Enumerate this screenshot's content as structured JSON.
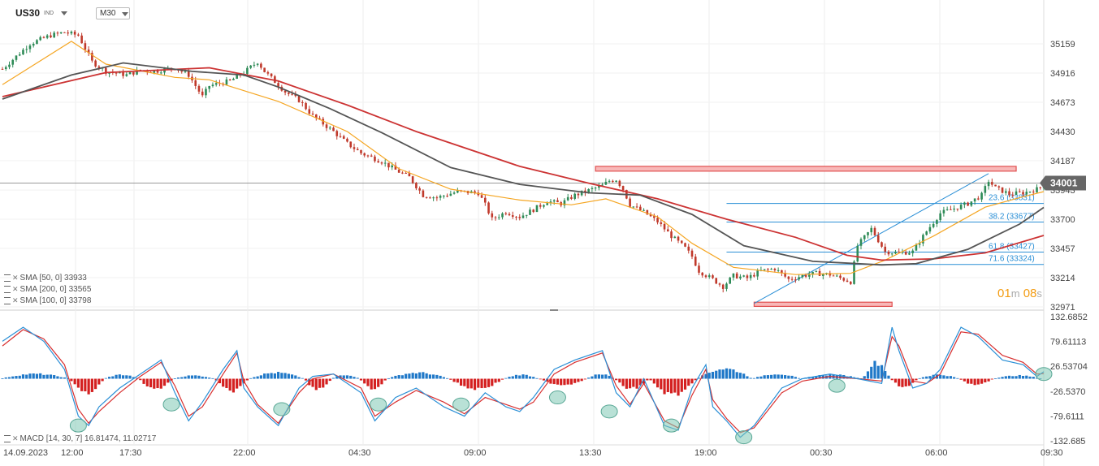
{
  "header": {
    "symbol": "US30",
    "symbol_tag": "IND",
    "timeframe": "M30"
  },
  "legend": [
    {
      "label": "SMA [50, 0] 33933"
    },
    {
      "label": "SMA [200, 0] 33565"
    },
    {
      "label": "SMA [100, 0] 33798"
    }
  ],
  "macd_label": "MACD [14, 30, 7] 16.81474, 11.02717",
  "candle_timer": {
    "minutes": "01",
    "minutes_unit": "m",
    "seconds": "08",
    "seconds_unit": "s"
  },
  "chart_data": [
    {
      "type": "candlestick",
      "ylim": [
        32971,
        35280
      ],
      "y_ticks": [
        "35159",
        "34916",
        "34673",
        "34430",
        "34187",
        "33943",
        "33700",
        "33457",
        "33214",
        "32971"
      ],
      "x_ticks": [
        "14.09.2023",
        "12:00",
        "17:30",
        "22:00",
        "04:30",
        "09:00",
        "13:30",
        "19:00",
        "00:30",
        "06:00",
        "09:30"
      ],
      "current_price": {
        "value": 34001,
        "label": "34001"
      },
      "close_path": [
        [
          0,
          34950
        ],
        [
          8,
          35160
        ],
        [
          14,
          35230
        ],
        [
          18,
          35255
        ],
        [
          22,
          35230
        ],
        [
          26,
          35010
        ],
        [
          30,
          34930
        ],
        [
          36,
          34900
        ],
        [
          40,
          34940
        ],
        [
          44,
          34930
        ],
        [
          50,
          34960
        ],
        [
          54,
          34900
        ],
        [
          58,
          34720
        ],
        [
          60,
          34810
        ],
        [
          66,
          34850
        ],
        [
          70,
          34920
        ],
        [
          74,
          35010
        ],
        [
          76,
          34930
        ],
        [
          82,
          34760
        ],
        [
          86,
          34690
        ],
        [
          90,
          34560
        ],
        [
          96,
          34430
        ],
        [
          100,
          34330
        ],
        [
          104,
          34250
        ],
        [
          110,
          34180
        ],
        [
          114,
          34110
        ],
        [
          118,
          34050
        ],
        [
          122,
          33900
        ],
        [
          126,
          33880
        ],
        [
          132,
          33930
        ],
        [
          138,
          33920
        ],
        [
          140,
          33820
        ],
        [
          142,
          33700
        ],
        [
          146,
          33760
        ],
        [
          150,
          33720
        ],
        [
          154,
          33780
        ],
        [
          158,
          33850
        ],
        [
          162,
          33830
        ],
        [
          166,
          33900
        ],
        [
          170,
          33940
        ],
        [
          174,
          33980
        ],
        [
          176,
          34020
        ],
        [
          178,
          34030
        ],
        [
          180,
          33950
        ],
        [
          182,
          33820
        ],
        [
          186,
          33760
        ],
        [
          190,
          33680
        ],
        [
          194,
          33560
        ],
        [
          198,
          33460
        ],
        [
          200,
          33390
        ],
        [
          202,
          33270
        ],
        [
          206,
          33200
        ],
        [
          209,
          33140
        ],
        [
          212,
          33230
        ],
        [
          216,
          33210
        ],
        [
          220,
          33270
        ],
        [
          224,
          33290
        ],
        [
          228,
          33200
        ],
        [
          232,
          33230
        ],
        [
          236,
          33250
        ],
        [
          240,
          33240
        ],
        [
          244,
          33200
        ],
        [
          246,
          33180
        ],
        [
          248,
          33480
        ],
        [
          252,
          33620
        ],
        [
          256,
          33430
        ],
        [
          260,
          33420
        ],
        [
          264,
          33430
        ],
        [
          268,
          33600
        ],
        [
          272,
          33750
        ],
        [
          276,
          33790
        ],
        [
          280,
          33830
        ],
        [
          284,
          33900
        ],
        [
          286,
          34020
        ],
        [
          288,
          33960
        ],
        [
          292,
          33910
        ],
        [
          296,
          33920
        ],
        [
          300,
          33950
        ],
        [
          302,
          33980
        ]
      ],
      "series": [
        {
          "name": "SMA [50, 0]",
          "value": 33933,
          "color": "#f5a623",
          "points": [
            [
              0,
              34820
            ],
            [
              20,
              35180
            ],
            [
              30,
              34990
            ],
            [
              50,
              34880
            ],
            [
              60,
              34860
            ],
            [
              80,
              34680
            ],
            [
              100,
              34430
            ],
            [
              115,
              34120
            ],
            [
              130,
              33950
            ],
            [
              150,
              33860
            ],
            [
              165,
              33820
            ],
            [
              175,
              33870
            ],
            [
              190,
              33720
            ],
            [
              200,
              33500
            ],
            [
              212,
              33300
            ],
            [
              230,
              33240
            ],
            [
              246,
              33250
            ],
            [
              256,
              33360
            ],
            [
              270,
              33560
            ],
            [
              285,
              33800
            ],
            [
              295,
              33880
            ],
            [
              302,
              33930
            ]
          ]
        },
        {
          "name": "SMA [200, 0]",
          "value": 33565,
          "color": "#cc3333",
          "points": [
            [
              0,
              34720
            ],
            [
              30,
              34920
            ],
            [
              60,
              34960
            ],
            [
              80,
              34850
            ],
            [
              100,
              34650
            ],
            [
              120,
              34430
            ],
            [
              150,
              34140
            ],
            [
              170,
              34000
            ],
            [
              190,
              33870
            ],
            [
              210,
              33700
            ],
            [
              230,
              33550
            ],
            [
              245,
              33400
            ],
            [
              255,
              33360
            ],
            [
              270,
              33370
            ],
            [
              285,
              33420
            ],
            [
              302,
              33565
            ]
          ]
        },
        {
          "name": "SMA [100, 0]",
          "value": 33798,
          "color": "#555555",
          "points": [
            [
              0,
              34700
            ],
            [
              20,
              34900
            ],
            [
              35,
              35000
            ],
            [
              55,
              34930
            ],
            [
              70,
              34900
            ],
            [
              80,
              34800
            ],
            [
              95,
              34620
            ],
            [
              110,
              34420
            ],
            [
              130,
              34130
            ],
            [
              150,
              33990
            ],
            [
              170,
              33920
            ],
            [
              185,
              33900
            ],
            [
              200,
              33740
            ],
            [
              215,
              33480
            ],
            [
              235,
              33350
            ],
            [
              255,
              33320
            ],
            [
              265,
              33330
            ],
            [
              280,
              33450
            ],
            [
              295,
              33660
            ],
            [
              302,
              33798
            ]
          ]
        }
      ],
      "fibonacci": [
        {
          "label": "23.6 (33831)",
          "value": 33831
        },
        {
          "label": "38.2 (33677)",
          "value": 33677
        },
        {
          "label": "61.8 (33427)",
          "value": 33427
        },
        {
          "label": "71.6 (33324)",
          "value": 33324
        }
      ],
      "trendline": {
        "from": [
          218,
          33000
        ],
        "to": [
          286,
          34080
        ]
      },
      "zones": [
        {
          "name": "resistance",
          "low": 34100,
          "high": 34140,
          "x_from": 172,
          "x_to": 294
        },
        {
          "name": "support",
          "low": 32975,
          "high": 33010,
          "x_from": 218,
          "x_to": 258
        }
      ]
    },
    {
      "type": "macd",
      "ylim": [
        -132.685,
        132.6852
      ],
      "y_ticks": [
        "132.6852",
        "79.61113",
        "26.53704",
        "-26.5370",
        "-79.6111",
        "-132.685"
      ],
      "macd": [
        [
          0,
          80
        ],
        [
          6,
          110
        ],
        [
          12,
          80
        ],
        [
          18,
          20
        ],
        [
          22,
          -80
        ],
        [
          25,
          -100
        ],
        [
          28,
          -60
        ],
        [
          34,
          -20
        ],
        [
          40,
          10
        ],
        [
          46,
          40
        ],
        [
          50,
          -30
        ],
        [
          54,
          -90
        ],
        [
          58,
          -50
        ],
        [
          64,
          20
        ],
        [
          68,
          60
        ],
        [
          70,
          -20
        ],
        [
          74,
          -60
        ],
        [
          80,
          -100
        ],
        [
          86,
          -20
        ],
        [
          90,
          5
        ],
        [
          96,
          10
        ],
        [
          104,
          -30
        ],
        [
          108,
          -90
        ],
        [
          114,
          -40
        ],
        [
          120,
          -20
        ],
        [
          128,
          -60
        ],
        [
          134,
          -80
        ],
        [
          140,
          -30
        ],
        [
          146,
          -60
        ],
        [
          150,
          -70
        ],
        [
          154,
          -40
        ],
        [
          160,
          20
        ],
        [
          166,
          40
        ],
        [
          174,
          60
        ],
        [
          178,
          -30
        ],
        [
          182,
          -60
        ],
        [
          186,
          0
        ],
        [
          192,
          -100
        ],
        [
          196,
          -110
        ],
        [
          200,
          -20
        ],
        [
          204,
          30
        ],
        [
          206,
          -60
        ],
        [
          210,
          -90
        ],
        [
          214,
          -125
        ],
        [
          218,
          -100
        ],
        [
          226,
          -20
        ],
        [
          232,
          0
        ],
        [
          240,
          10
        ],
        [
          248,
          0
        ],
        [
          255,
          -10
        ],
        [
          258,
          110
        ],
        [
          260,
          60
        ],
        [
          264,
          -20
        ],
        [
          268,
          -10
        ],
        [
          272,
          20
        ],
        [
          278,
          110
        ],
        [
          283,
          90
        ],
        [
          290,
          40
        ],
        [
          296,
          30
        ],
        [
          300,
          5
        ],
        [
          302,
          15
        ]
      ],
      "signal": [
        [
          0,
          70
        ],
        [
          6,
          105
        ],
        [
          12,
          85
        ],
        [
          18,
          30
        ],
        [
          22,
          -65
        ],
        [
          25,
          -95
        ],
        [
          28,
          -70
        ],
        [
          34,
          -30
        ],
        [
          40,
          5
        ],
        [
          46,
          35
        ],
        [
          50,
          -15
        ],
        [
          54,
          -80
        ],
        [
          58,
          -60
        ],
        [
          64,
          10
        ],
        [
          68,
          55
        ],
        [
          70,
          -5
        ],
        [
          74,
          -55
        ],
        [
          80,
          -95
        ],
        [
          86,
          -30
        ],
        [
          90,
          0
        ],
        [
          96,
          10
        ],
        [
          104,
          -20
        ],
        [
          108,
          -80
        ],
        [
          114,
          -50
        ],
        [
          120,
          -25
        ],
        [
          128,
          -50
        ],
        [
          134,
          -75
        ],
        [
          140,
          -40
        ],
        [
          146,
          -55
        ],
        [
          150,
          -65
        ],
        [
          154,
          -50
        ],
        [
          160,
          10
        ],
        [
          166,
          35
        ],
        [
          174,
          55
        ],
        [
          178,
          -15
        ],
        [
          182,
          -55
        ],
        [
          186,
          -10
        ],
        [
          192,
          -90
        ],
        [
          196,
          -105
        ],
        [
          200,
          -35
        ],
        [
          204,
          20
        ],
        [
          206,
          -45
        ],
        [
          210,
          -85
        ],
        [
          214,
          -115
        ],
        [
          218,
          -105
        ],
        [
          226,
          -30
        ],
        [
          232,
          -5
        ],
        [
          240,
          5
        ],
        [
          248,
          0
        ],
        [
          255,
          -5
        ],
        [
          258,
          90
        ],
        [
          260,
          70
        ],
        [
          264,
          -5
        ],
        [
          268,
          -10
        ],
        [
          272,
          10
        ],
        [
          278,
          100
        ],
        [
          283,
          95
        ],
        [
          290,
          50
        ],
        [
          296,
          35
        ],
        [
          300,
          10
        ],
        [
          302,
          11
        ]
      ],
      "histogram_segments": [
        [
          0,
          20,
          12
        ],
        [
          20,
          30,
          -35
        ],
        [
          30,
          40,
          10
        ],
        [
          40,
          50,
          -25
        ],
        [
          50,
          62,
          8
        ],
        [
          62,
          72,
          -30
        ],
        [
          72,
          88,
          15
        ],
        [
          88,
          96,
          -25
        ],
        [
          96,
          104,
          10
        ],
        [
          104,
          112,
          -25
        ],
        [
          112,
          130,
          15
        ],
        [
          130,
          146,
          -25
        ],
        [
          146,
          156,
          10
        ],
        [
          156,
          170,
          -15
        ],
        [
          170,
          178,
          12
        ],
        [
          178,
          188,
          -25
        ],
        [
          188,
          202,
          -40
        ],
        [
          202,
          218,
          25
        ],
        [
          218,
          232,
          12
        ],
        [
          232,
          250,
          10
        ],
        [
          250,
          258,
          40
        ],
        [
          258,
          266,
          -20
        ],
        [
          266,
          278,
          10
        ],
        [
          278,
          288,
          -15
        ],
        [
          288,
          302,
          8
        ]
      ],
      "marker_points": [
        [
          22,
          -100
        ],
        [
          49,
          -55
        ],
        [
          81,
          -65
        ],
        [
          109,
          -55
        ],
        [
          133,
          -55
        ],
        [
          161,
          -40
        ],
        [
          176,
          -70
        ],
        [
          194,
          -100
        ],
        [
          215,
          -125
        ],
        [
          242,
          -15
        ],
        [
          302,
          10
        ]
      ]
    }
  ]
}
